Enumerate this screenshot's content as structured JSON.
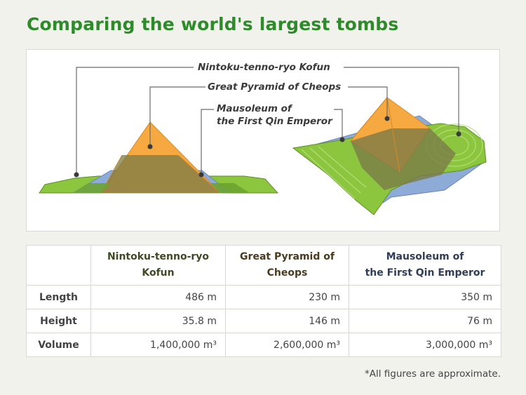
{
  "title": "Comparing the world's largest tombs",
  "diagram": {
    "callouts": {
      "nintoku": "Nintoku-tenno-ryo Kofun",
      "cheops": "Great Pyramid of Cheops",
      "qin_line1": "Mausoleum of",
      "qin_line2": "the First Qin Emperor"
    }
  },
  "table": {
    "columns": [
      {
        "line1": "Nintoku-tenno-ryo",
        "line2": "Kofun",
        "color": "#8cc63f"
      },
      {
        "line1": "Great Pyramid of",
        "line2": "Cheops",
        "color": "#f7a941"
      },
      {
        "line1": "Mausoleum of",
        "line2": "the First Qin Emperor",
        "color": "#8eabd8"
      }
    ],
    "rows": [
      {
        "label": "Length",
        "values": [
          "486 m",
          "230 m",
          "350 m"
        ]
      },
      {
        "label": "Height",
        "values": [
          "35.8 m",
          "146 m",
          "76 m"
        ]
      },
      {
        "label": "Volume",
        "values": [
          "1,400,000 m³",
          "2,600,000 m³",
          "3,000,000 m³"
        ]
      }
    ]
  },
  "footnote": "*All figures are approximate."
}
